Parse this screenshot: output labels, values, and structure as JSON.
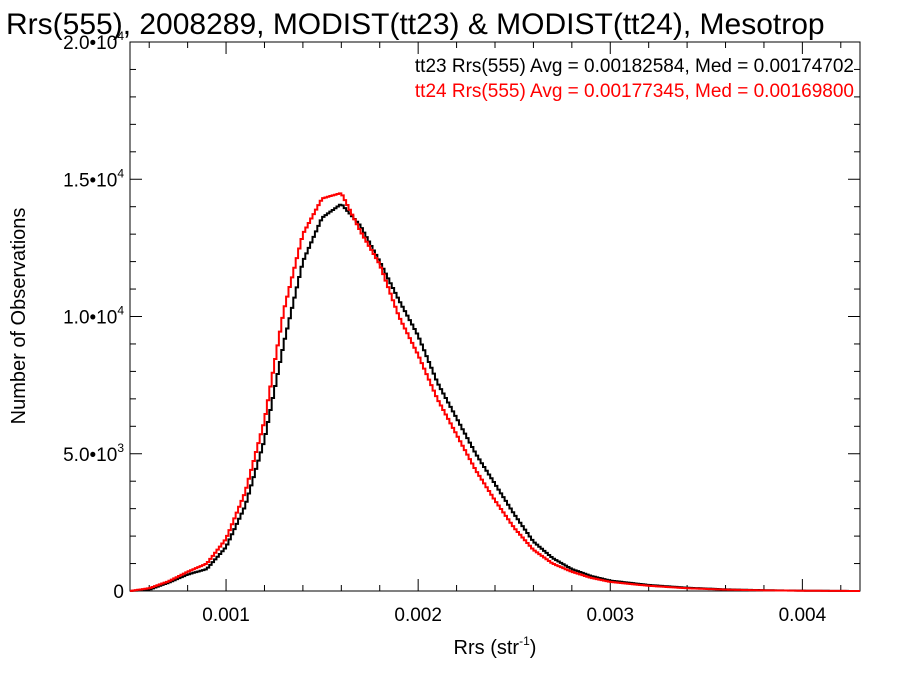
{
  "chart_data": {
    "type": "line",
    "title": "Rrs(555), 2008289, MODIST(tt23) & MODIST(tt24), Mesotrop",
    "xlabel": "Rrs (str",
    "xlabel_sup": "-1",
    "xlabel_close": ")",
    "ylabel": "Number of Observations",
    "xlim": [
      0.0005,
      0.0043
    ],
    "ylim": [
      0,
      20000
    ],
    "x_ticks": [
      {
        "value": 0.001,
        "label": "0.001"
      },
      {
        "value": 0.002,
        "label": "0.002"
      },
      {
        "value": 0.003,
        "label": "0.003"
      },
      {
        "value": 0.004,
        "label": "0.004"
      }
    ],
    "y_ticks": [
      {
        "value": 0,
        "label": "0",
        "sup": ""
      },
      {
        "value": 5000,
        "label": "5.0•10",
        "sup": "3"
      },
      {
        "value": 10000,
        "label": "1.0•10",
        "sup": "4"
      },
      {
        "value": 15000,
        "label": "1.5•10",
        "sup": "4"
      },
      {
        "value": 20000,
        "label": "2.0•10",
        "sup": "4"
      }
    ],
    "x_minor_step": 0.0002,
    "y_minor_step": 1000,
    "x": [
      0.0005,
      0.0006,
      0.0007,
      0.0008,
      0.0009,
      0.001,
      0.0011,
      0.0012,
      0.0013,
      0.0014,
      0.0015,
      0.0016,
      0.0017,
      0.0018,
      0.0019,
      0.002,
      0.0021,
      0.0022,
      0.0023,
      0.0024,
      0.0025,
      0.0026,
      0.0027,
      0.0028,
      0.0029,
      0.003,
      0.0032,
      0.0034,
      0.0036,
      0.0038,
      0.004,
      0.0043
    ],
    "series": [
      {
        "name": "tt23",
        "color": "#000000",
        "values": [
          0,
          50,
          300,
          600,
          800,
          1600,
          3100,
          5500,
          9000,
          12000,
          13600,
          14100,
          13300,
          12000,
          10600,
          9300,
          7600,
          6300,
          5000,
          3900,
          2800,
          1800,
          1200,
          800,
          550,
          380,
          220,
          120,
          60,
          30,
          12,
          0
        ]
      },
      {
        "name": "tt24",
        "color": "#ff0000",
        "values": [
          0,
          100,
          350,
          700,
          1000,
          1900,
          3600,
          6200,
          10200,
          13000,
          14300,
          14500,
          13100,
          11900,
          10000,
          8600,
          7000,
          5700,
          4400,
          3300,
          2300,
          1500,
          1000,
          700,
          480,
          330,
          190,
          100,
          50,
          25,
          10,
          0
        ]
      }
    ],
    "annotations": [
      {
        "text": "tt23 Rrs(555) Avg = 0.00182584, Med = 0.00174702",
        "color": "#000000"
      },
      {
        "text": "tt24 Rrs(555) Avg = 0.00177345, Med = 0.00169800",
        "color": "#ff0000"
      }
    ],
    "grid": false
  }
}
